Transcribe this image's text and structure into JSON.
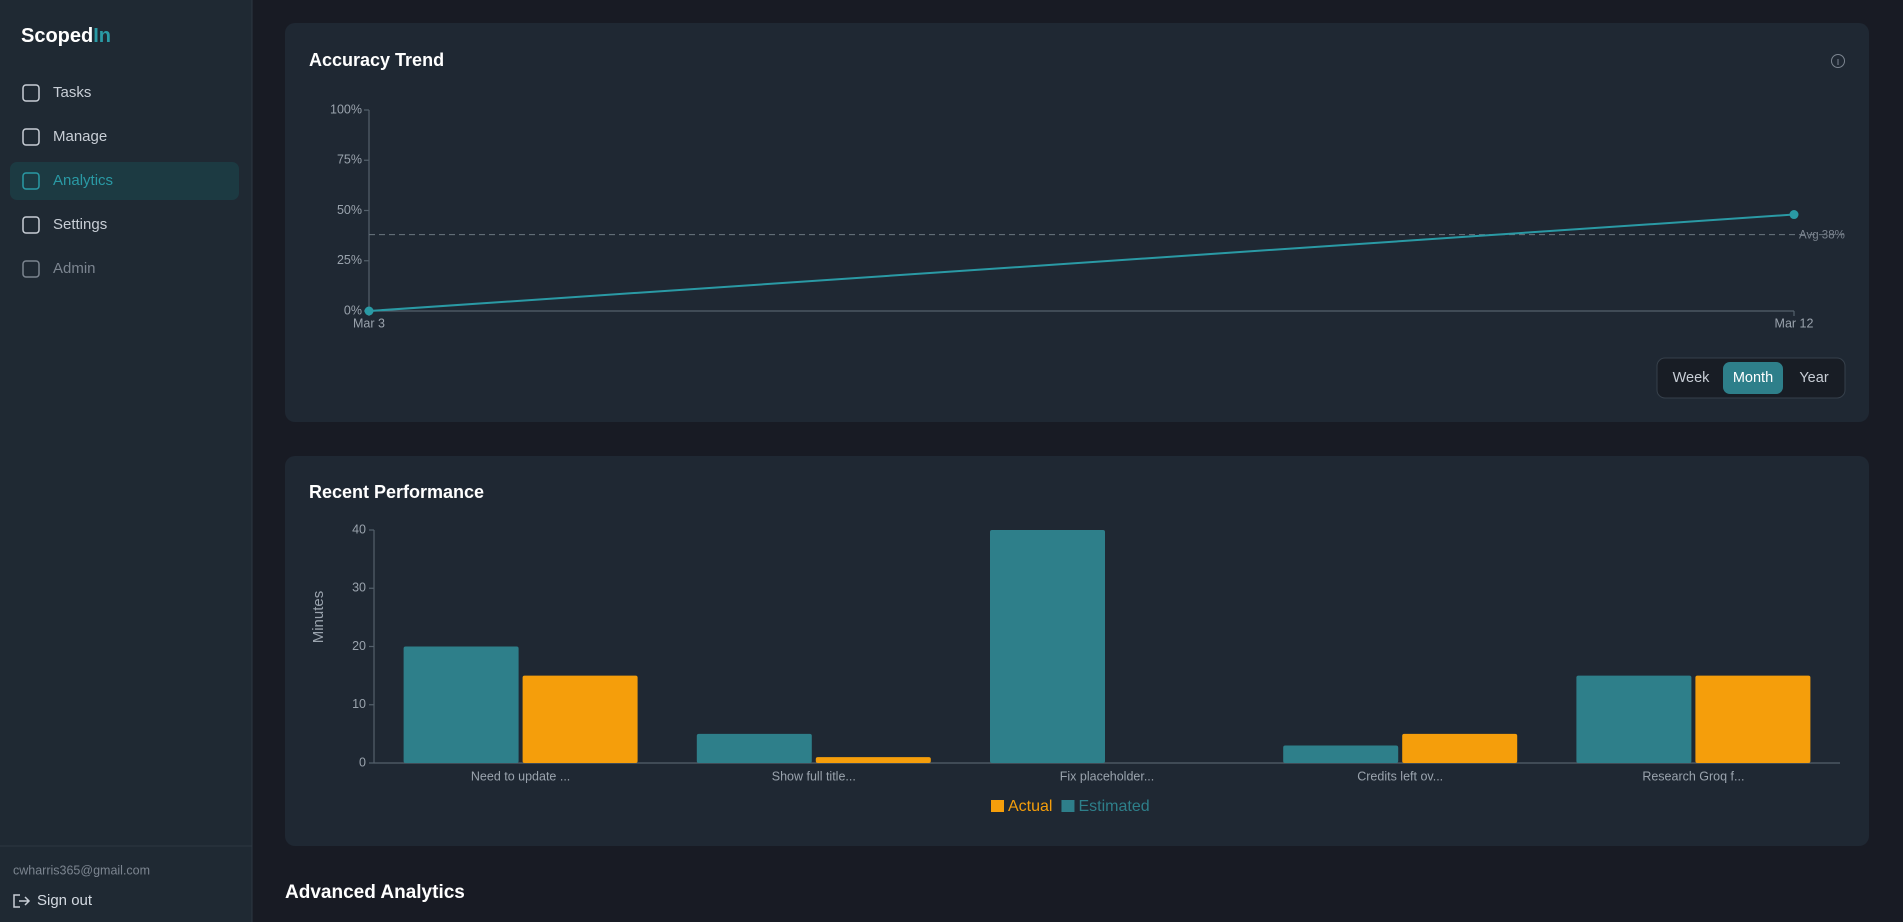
{
  "sidebar": {
    "logo": [
      "Scoped",
      "In"
    ],
    "nav": [
      "Tasks",
      "Manage",
      "Analytics",
      "Settings",
      "Admin"
    ],
    "active": "Analytics",
    "email": "cwharris365@gmail.com",
    "sign_out": "Sign out"
  },
  "chart_data": [
    {
      "type": "line",
      "title": "Accuracy Trend",
      "categories": [
        "Mar 3",
        "Mar 12"
      ],
      "values": [
        0,
        48
      ],
      "color": "#2a9aa5",
      "ylim": [
        0,
        100
      ],
      "yticks": [
        {
          "value": 0,
          "label": "0%"
        },
        {
          "value": 25,
          "label": "25%"
        },
        {
          "value": 50,
          "label": "50%"
        },
        {
          "value": 75,
          "label": "75%"
        },
        {
          "value": 100,
          "label": "100%"
        }
      ],
      "average": {
        "value": 38,
        "label": "Avg 38%"
      },
      "ranges": [
        "Week",
        "Month",
        "Year"
      ],
      "selected_range": "Month"
    },
    {
      "type": "bar",
      "title": "Recent Performance",
      "ylabel": "Minutes",
      "categories": [
        "Need to update ...",
        "Show full title...",
        "Fix placeholder...",
        "Credits left ov...",
        "Research Groq f..."
      ],
      "series": [
        {
          "name": "Actual",
          "color": "#f59e0b",
          "values": [
            15,
            1,
            0,
            5,
            15
          ]
        },
        {
          "name": "Estimated",
          "color": "#2e7f8a",
          "values": [
            20,
            5,
            40,
            3,
            15
          ]
        }
      ],
      "ylim": [
        0,
        40
      ],
      "yticks": [
        0,
        10,
        20,
        30,
        40
      ]
    }
  ],
  "section_heading": "Advanced Analytics"
}
